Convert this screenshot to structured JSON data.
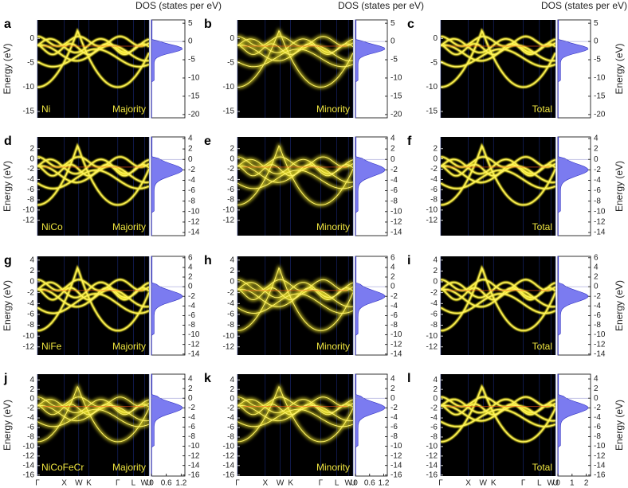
{
  "chart_data": [
    {
      "type": "band-dos",
      "letter": "a",
      "system": "Ni",
      "spin": "Majority",
      "dos_title": "DOS (states per eV)",
      "ylabel": "Energy (eV)",
      "ylim": [
        -16.3,
        3.8
      ],
      "yticks": [
        0,
        -5,
        -10,
        -15
      ],
      "y2lim": [
        -20.9,
        5.9
      ],
      "y2ticks": [
        5,
        0,
        -5,
        -10,
        -15,
        -20
      ]
    },
    {
      "type": "band-dos",
      "letter": "b",
      "spin": "Minority",
      "dos_title": "DOS (states per eV)",
      "ylim": [
        -16.3,
        3.8
      ],
      "yticks": [
        0,
        -5,
        -10,
        -15
      ],
      "y2lim": [
        -20.9,
        5.9
      ],
      "y2ticks": [
        5,
        0,
        -5,
        -10,
        -15,
        -20
      ]
    },
    {
      "type": "band-dos",
      "letter": "c",
      "spin": "Total",
      "dos_title": "DOS (states per eV)",
      "y2label": "Energy (eV)",
      "ylim": [
        -16.3,
        3.8
      ],
      "yticks": [
        0,
        -5,
        -10,
        -15
      ],
      "y2lim": [
        -20.9,
        5.9
      ],
      "y2ticks": [
        5,
        0,
        -5,
        -10,
        -15,
        -20
      ]
    },
    {
      "type": "band-dos",
      "letter": "d",
      "system": "NiCo",
      "spin": "Majority",
      "ylabel": "Energy (eV)",
      "ylim": [
        -15,
        4.3
      ],
      "yticks": [
        2,
        0,
        -2,
        -4,
        -6,
        -8,
        -10,
        -12
      ],
      "y2lim": [
        -14.6,
        4.3
      ],
      "y2ticks": [
        4,
        2,
        0,
        -2,
        -4,
        -6,
        -8,
        -10,
        -12,
        -14
      ]
    },
    {
      "type": "band-dos",
      "letter": "e",
      "spin": "Minority",
      "ylim": [
        -15,
        4.3
      ],
      "yticks": [
        2,
        0,
        -2,
        -4,
        -6,
        -8,
        -10,
        -12
      ],
      "y2lim": [
        -14.6,
        4.3
      ],
      "y2ticks": [
        4,
        2,
        0,
        -2,
        -4,
        -6,
        -8,
        -10,
        -12,
        -14
      ]
    },
    {
      "type": "band-dos",
      "letter": "f",
      "spin": "Total",
      "y2label": "Energy (eV)",
      "ylim": [
        -15,
        4.3
      ],
      "yticks": [
        2,
        0,
        -2,
        -4,
        -6,
        -8,
        -10,
        -12
      ],
      "y2lim": [
        -14.6,
        4.3
      ],
      "y2ticks": [
        4,
        2,
        0,
        -2,
        -4,
        -6,
        -8,
        -10,
        -12,
        -14
      ]
    },
    {
      "type": "band-dos",
      "letter": "g",
      "system": "NiFe",
      "spin": "Majority",
      "ylabel": "Energy (eV)",
      "ylim": [
        -13.5,
        4.7
      ],
      "yticks": [
        4,
        2,
        0,
        -2,
        -4,
        -6,
        -8,
        -10,
        -12
      ],
      "y2lim": [
        -14.2,
        6.3
      ],
      "y2ticks": [
        6,
        4,
        2,
        0,
        -2,
        -4,
        -6,
        -8,
        -10,
        -12,
        -14
      ]
    },
    {
      "type": "band-dos",
      "letter": "h",
      "spin": "Minority",
      "ylim": [
        -13.5,
        4.7
      ],
      "yticks": [
        4,
        2,
        0,
        -2,
        -4,
        -6,
        -8,
        -10,
        -12
      ],
      "y2lim": [
        -14.2,
        6.3
      ],
      "y2ticks": [
        6,
        4,
        2,
        0,
        -2,
        -4,
        -6,
        -8,
        -10,
        -12,
        -14
      ]
    },
    {
      "type": "band-dos",
      "letter": "i",
      "spin": "Total",
      "y2label": "Energy (eV)",
      "ylim": [
        -13.5,
        4.7
      ],
      "yticks": [
        4,
        2,
        0,
        -2,
        -4,
        -6,
        -8,
        -10,
        -12
      ],
      "y2lim": [
        -14.2,
        6.3
      ],
      "y2ticks": [
        6,
        4,
        2,
        0,
        -2,
        -4,
        -6,
        -8,
        -10,
        -12,
        -14
      ]
    },
    {
      "type": "band-dos",
      "letter": "j",
      "system": "NiCoFeCr",
      "spin": "Majority",
      "ylabel": "Energy (eV)",
      "ylim": [
        -16.2,
        5.2
      ],
      "yticks": [
        4,
        2,
        0,
        -2,
        -4,
        -6,
        -8,
        -10,
        -12,
        -14,
        -16
      ],
      "y2lim": [
        -16.2,
        5.0
      ],
      "y2ticks": [
        4,
        2,
        0,
        -2,
        -4,
        -6,
        -8,
        -10,
        -12,
        -14,
        -16
      ],
      "categories": [
        "Γ",
        "X",
        "W",
        "K",
        "Γ",
        "L",
        "W",
        "U"
      ],
      "dos_xlim": [
        0,
        1.35
      ],
      "dos_xticks": [
        0,
        0.6,
        1.2
      ]
    },
    {
      "type": "band-dos",
      "letter": "k",
      "spin": "Minority",
      "ylim": [
        -16.2,
        5.2
      ],
      "yticks": [
        4,
        2,
        0,
        -2,
        -4,
        -6,
        -8,
        -10,
        -12,
        -14,
        -16
      ],
      "y2lim": [
        -16.2,
        5.0
      ],
      "y2ticks": [
        4,
        2,
        0,
        -2,
        -4,
        -6,
        -8,
        -10,
        -12,
        -14,
        -16
      ],
      "categories": [
        "Γ",
        "X",
        "W",
        "K",
        "Γ",
        "L",
        "W",
        "U"
      ],
      "dos_xlim": [
        0,
        1.35
      ],
      "dos_xticks": [
        0,
        0.6,
        1.2
      ]
    },
    {
      "type": "band-dos",
      "letter": "l",
      "spin": "Total",
      "y2label": "Energy (eV)",
      "ylim": [
        -16.2,
        5.2
      ],
      "yticks": [
        4,
        2,
        0,
        -2,
        -4,
        -6,
        -8,
        -10,
        -12,
        -14,
        -16
      ],
      "y2lim": [
        -16.2,
        5.0
      ],
      "y2ticks": [
        4,
        2,
        0,
        -2,
        -4,
        -6,
        -8,
        -10,
        -12,
        -14,
        -16
      ],
      "categories": [
        "Γ",
        "X",
        "W",
        "K",
        "Γ",
        "L",
        "W",
        "U"
      ],
      "dos_xlim": [
        0,
        2.3
      ],
      "dos_xticks": [
        0,
        1,
        2
      ]
    }
  ]
}
